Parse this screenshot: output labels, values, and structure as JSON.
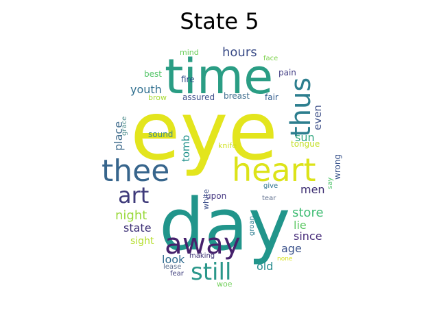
{
  "title": "State 5",
  "words": [
    {
      "text": "eye",
      "color": "#e3e51d"
    },
    {
      "text": "day",
      "color": "#21958b"
    },
    {
      "text": "time",
      "color": "#2a9d84"
    },
    {
      "text": "heart",
      "color": "#dce319"
    },
    {
      "text": "thee",
      "color": "#37658c"
    },
    {
      "text": "away",
      "color": "#46216c"
    },
    {
      "text": "thus",
      "color": "#2c7e8e"
    },
    {
      "text": "still",
      "color": "#2a978a"
    },
    {
      "text": "art",
      "color": "#3e3a7a"
    },
    {
      "text": "hours",
      "color": "#3c4d88"
    },
    {
      "text": "store",
      "color": "#3fbc73"
    },
    {
      "text": "night",
      "color": "#9ad93c"
    },
    {
      "text": "youth",
      "color": "#2e6e8e"
    },
    {
      "text": "place",
      "color": "#416d8d"
    },
    {
      "text": "men",
      "color": "#3b2c70"
    },
    {
      "text": "sun",
      "color": "#31a67f"
    },
    {
      "text": "even",
      "color": "#3f5189"
    },
    {
      "text": "tomb",
      "color": "#21918c"
    },
    {
      "text": "state",
      "color": "#3c2f75"
    },
    {
      "text": "since",
      "color": "#472c7a"
    },
    {
      "text": "lie",
      "color": "#5cc863"
    },
    {
      "text": "age",
      "color": "#3b528b"
    },
    {
      "text": "look",
      "color": "#2e6a8e"
    },
    {
      "text": "old",
      "color": "#238a8d"
    },
    {
      "text": "sight",
      "color": "#b5de2b"
    },
    {
      "text": "wrong",
      "color": "#3a548c"
    },
    {
      "text": "tongue",
      "color": "#c2df23"
    },
    {
      "text": "sound",
      "color": "#3e8a8c"
    },
    {
      "text": "grace",
      "color": "#4e8e8d"
    },
    {
      "text": "assured",
      "color": "#3d4e8a"
    },
    {
      "text": "breast",
      "color": "#3f6e8e"
    },
    {
      "text": "fair",
      "color": "#2f5b8d"
    },
    {
      "text": "brow",
      "color": "#a8db34"
    },
    {
      "text": "fire",
      "color": "#2a4b87"
    },
    {
      "text": "pain",
      "color": "#433e85"
    },
    {
      "text": "best",
      "color": "#54c568"
    },
    {
      "text": "mind",
      "color": "#6ccd5a"
    },
    {
      "text": "face",
      "color": "#7fd34e"
    },
    {
      "text": "knife",
      "color": "#d0e11c"
    },
    {
      "text": "upon",
      "color": "#453781"
    },
    {
      "text": "white",
      "color": "#3c4f8a"
    },
    {
      "text": "groan",
      "color": "#2a7b8e"
    },
    {
      "text": "give",
      "color": "#2c728e"
    },
    {
      "text": "tear",
      "color": "#5e6e8d"
    },
    {
      "text": "say",
      "color": "#4fc36b"
    },
    {
      "text": "making",
      "color": "#3b2f73"
    },
    {
      "text": "lease",
      "color": "#5a6e8e"
    },
    {
      "text": "none",
      "color": "#d8e219"
    },
    {
      "text": "fear",
      "color": "#3a3a7a"
    },
    {
      "text": "woe",
      "color": "#6fcf58"
    }
  ]
}
